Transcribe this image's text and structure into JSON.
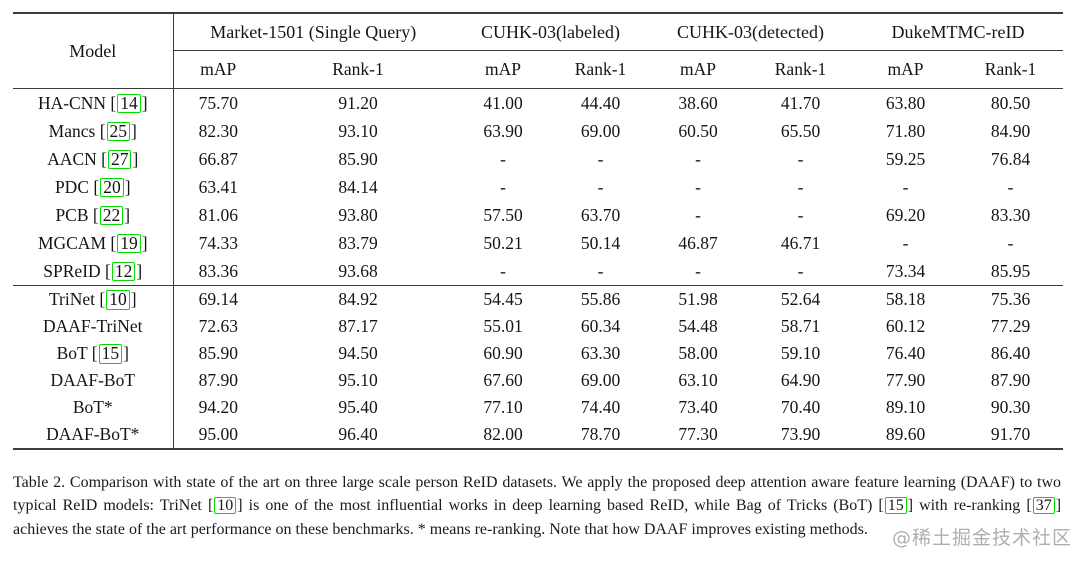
{
  "colors": {
    "citation_box_green": "#00dd00",
    "rule_color": "#3c3c3c",
    "watermark_gray": "#9a9a9a"
  },
  "table": {
    "cite_brackets": [
      "[",
      "]"
    ],
    "header": {
      "model_label": "Model",
      "groups": [
        {
          "label": "Market-1501 (Single Query)"
        },
        {
          "label": "CUHK-03(labeled)"
        },
        {
          "label": "CUHK-03(detected)"
        },
        {
          "label": "DukeMTMC-reID"
        }
      ],
      "subheaders": [
        "mAP",
        "Rank-1",
        "mAP",
        "Rank-1",
        "mAP",
        "Rank-1",
        "mAP",
        "Rank-1"
      ]
    },
    "blocks": [
      {
        "rows": [
          {
            "model": "HA-CNN",
            "cite": "14",
            "values": [
              "75.70",
              "91.20",
              "41.00",
              "44.40",
              "38.60",
              "41.70",
              "63.80",
              "80.50"
            ]
          },
          {
            "model": "Mancs",
            "cite": "25",
            "values": [
              "82.30",
              "93.10",
              "63.90",
              "69.00",
              "60.50",
              "65.50",
              "71.80",
              "84.90"
            ]
          },
          {
            "model": "AACN",
            "cite": "27",
            "values": [
              "66.87",
              "85.90",
              "-",
              "-",
              "-",
              "-",
              "59.25",
              "76.84"
            ]
          },
          {
            "model": "PDC",
            "cite": "20",
            "values": [
              "63.41",
              "84.14",
              "-",
              "-",
              "-",
              "-",
              "-",
              "-"
            ]
          },
          {
            "model": "PCB",
            "cite": "22",
            "values": [
              "81.06",
              "93.80",
              "57.50",
              "63.70",
              "-",
              "-",
              "69.20",
              "83.30"
            ]
          },
          {
            "model": "MGCAM",
            "cite": "19",
            "values": [
              "74.33",
              "83.79",
              "50.21",
              "50.14",
              "46.87",
              "46.71",
              "-",
              "-"
            ]
          },
          {
            "model": "SPReID",
            "cite": "12",
            "values": [
              "83.36",
              "93.68",
              "-",
              "-",
              "-",
              "-",
              "73.34",
              "85.95"
            ]
          }
        ]
      },
      {
        "rows": [
          {
            "model": "TriNet",
            "cite": "10",
            "values": [
              "69.14",
              "84.92",
              "54.45",
              "55.86",
              "51.98",
              "52.64",
              "58.18",
              "75.36"
            ]
          },
          {
            "model": "DAAF-TriNet",
            "cite": null,
            "values": [
              "72.63",
              "87.17",
              "55.01",
              "60.34",
              "54.48",
              "58.71",
              "60.12",
              "77.29"
            ]
          },
          {
            "model": "BoT",
            "cite": "15",
            "values": [
              "85.90",
              "94.50",
              "60.90",
              "63.30",
              "58.00",
              "59.10",
              "76.40",
              "86.40"
            ]
          },
          {
            "model": "DAAF-BoT",
            "cite": null,
            "values": [
              "87.90",
              "95.10",
              "67.60",
              "69.00",
              "63.10",
              "64.90",
              "77.90",
              "87.90"
            ]
          },
          {
            "model": "BoT*",
            "cite": null,
            "values": [
              "94.20",
              "95.40",
              "77.10",
              "74.40",
              "73.40",
              "70.40",
              "89.10",
              "90.30"
            ]
          },
          {
            "model": "DAAF-BoT*",
            "cite": null,
            "values": [
              "95.00",
              "96.40",
              "82.00",
              "78.70",
              "77.30",
              "73.90",
              "89.60",
              "91.70"
            ]
          }
        ]
      }
    ]
  },
  "caption": {
    "segments": [
      {
        "text": "Table 2. Comparison with state of the art on three large scale person ReID datasets. We apply the proposed deep attention aware feature learning (DAAF) to two typical ReID models: TriNet "
      },
      {
        "cite": "10"
      },
      {
        "text": " is one of the most influential works in deep learning based ReID, while Bag of Tricks (BoT) "
      },
      {
        "cite": "15"
      },
      {
        "text": " with re-ranking "
      },
      {
        "cite": "37"
      },
      {
        "text": " achieves the state of the art performance on these benchmarks. * means re-ranking. Note that how DAAF improves existing methods."
      }
    ]
  },
  "watermark": {
    "text": "@稀土掘金技术社区"
  }
}
